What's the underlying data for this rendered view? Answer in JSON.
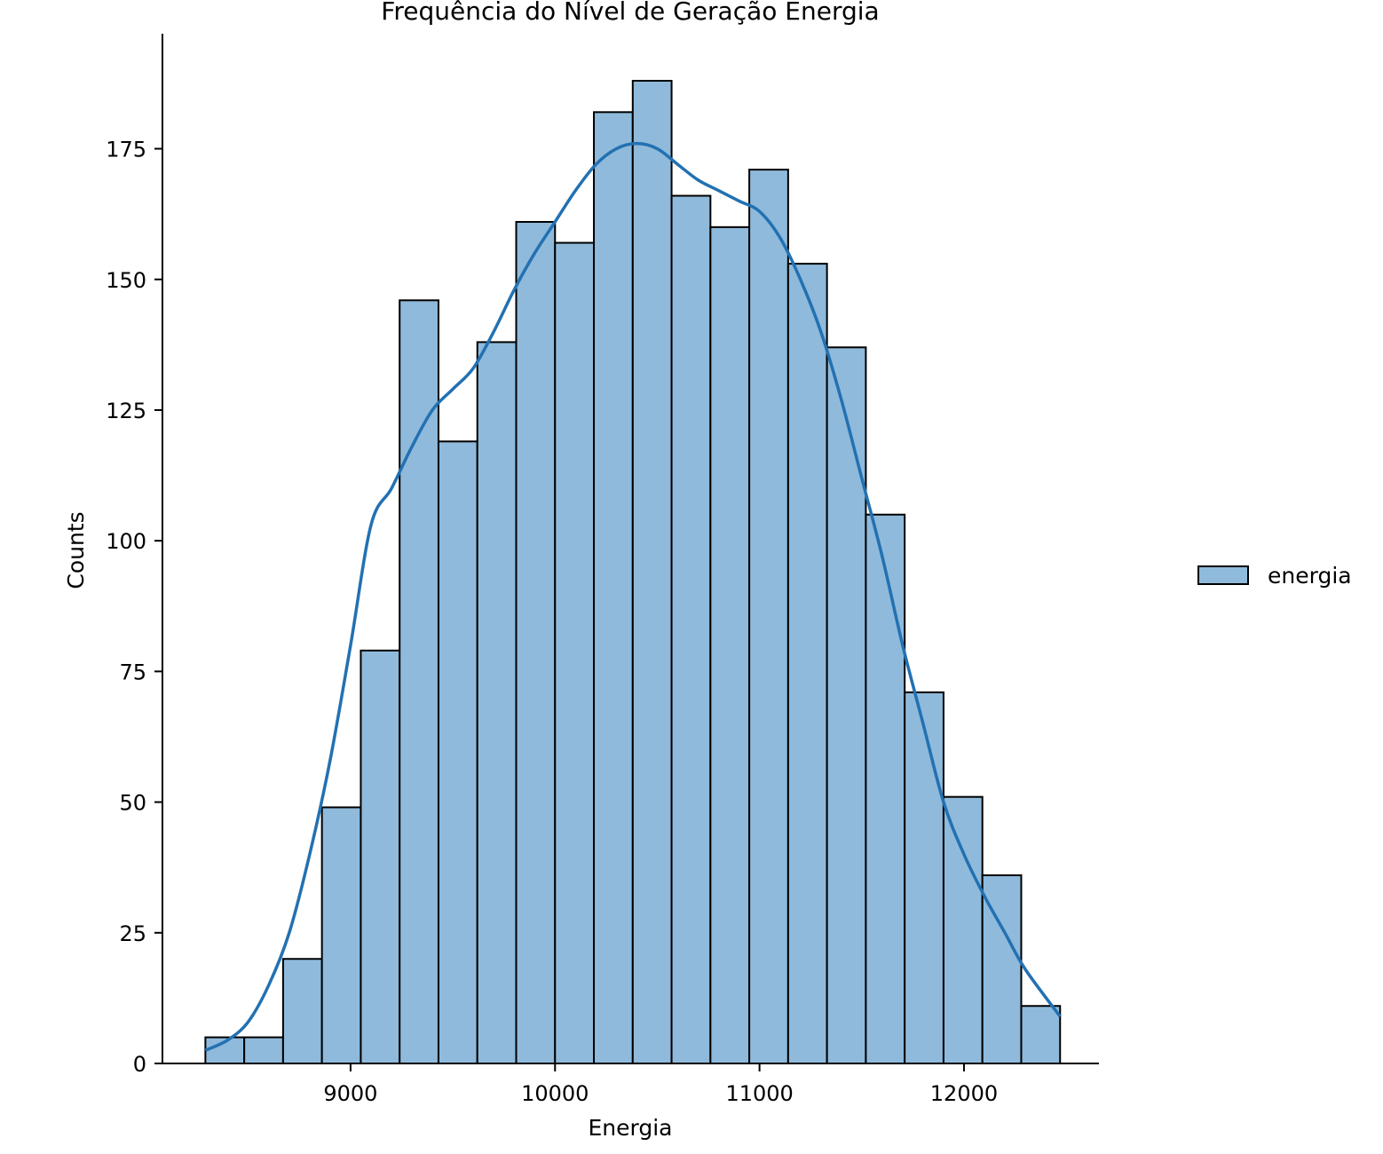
{
  "chart_data": {
    "type": "bar",
    "title": "Frequência do Nível de Geração Energia",
    "xlabel": "Energia",
    "ylabel": "Counts",
    "xlim": [
      8080,
      12660
    ],
    "ylim": [
      0,
      197
    ],
    "x_ticks": [
      9000,
      10000,
      11000,
      12000
    ],
    "y_ticks": [
      0,
      25,
      50,
      75,
      100,
      125,
      150,
      175
    ],
    "bin_edges": [
      8290,
      8480,
      8670,
      8860,
      9050,
      9240,
      9430,
      9620,
      9810,
      10000,
      10190,
      10380,
      10570,
      10760,
      10950,
      11140,
      11330,
      11520,
      11710,
      11900,
      12090,
      12280,
      12470
    ],
    "values": [
      5,
      5,
      20,
      49,
      79,
      146,
      119,
      138,
      161,
      157,
      182,
      188,
      166,
      160,
      171,
      153,
      137,
      105,
      71,
      51,
      36,
      11
    ],
    "kde": {
      "x": [
        8290,
        8400,
        8500,
        8600,
        8700,
        8800,
        8900,
        9000,
        9100,
        9200,
        9300,
        9400,
        9500,
        9600,
        9700,
        9800,
        9900,
        10000,
        10100,
        10200,
        10300,
        10400,
        10500,
        10600,
        10700,
        10800,
        10900,
        11000,
        11100,
        11200,
        11300,
        11400,
        11500,
        11600,
        11700,
        11800,
        11900,
        12000,
        12100,
        12200,
        12300,
        12470
      ],
      "y": [
        2.5,
        4.5,
        8,
        15,
        25,
        40,
        58,
        80,
        103,
        110,
        118,
        125,
        129,
        133,
        140,
        148,
        155,
        161,
        167,
        172,
        175,
        176,
        175,
        172,
        169,
        167,
        165,
        163,
        158,
        150,
        140,
        127,
        112,
        97,
        80,
        65,
        50,
        40,
        32,
        25,
        18,
        9
      ]
    },
    "legend": {
      "labels": [
        "energia"
      ],
      "placement": "right"
    },
    "colors": {
      "bar_fill": "#8fbadb",
      "bar_edge": "#000000",
      "kde_line": "#2271b2"
    },
    "grid": false
  }
}
